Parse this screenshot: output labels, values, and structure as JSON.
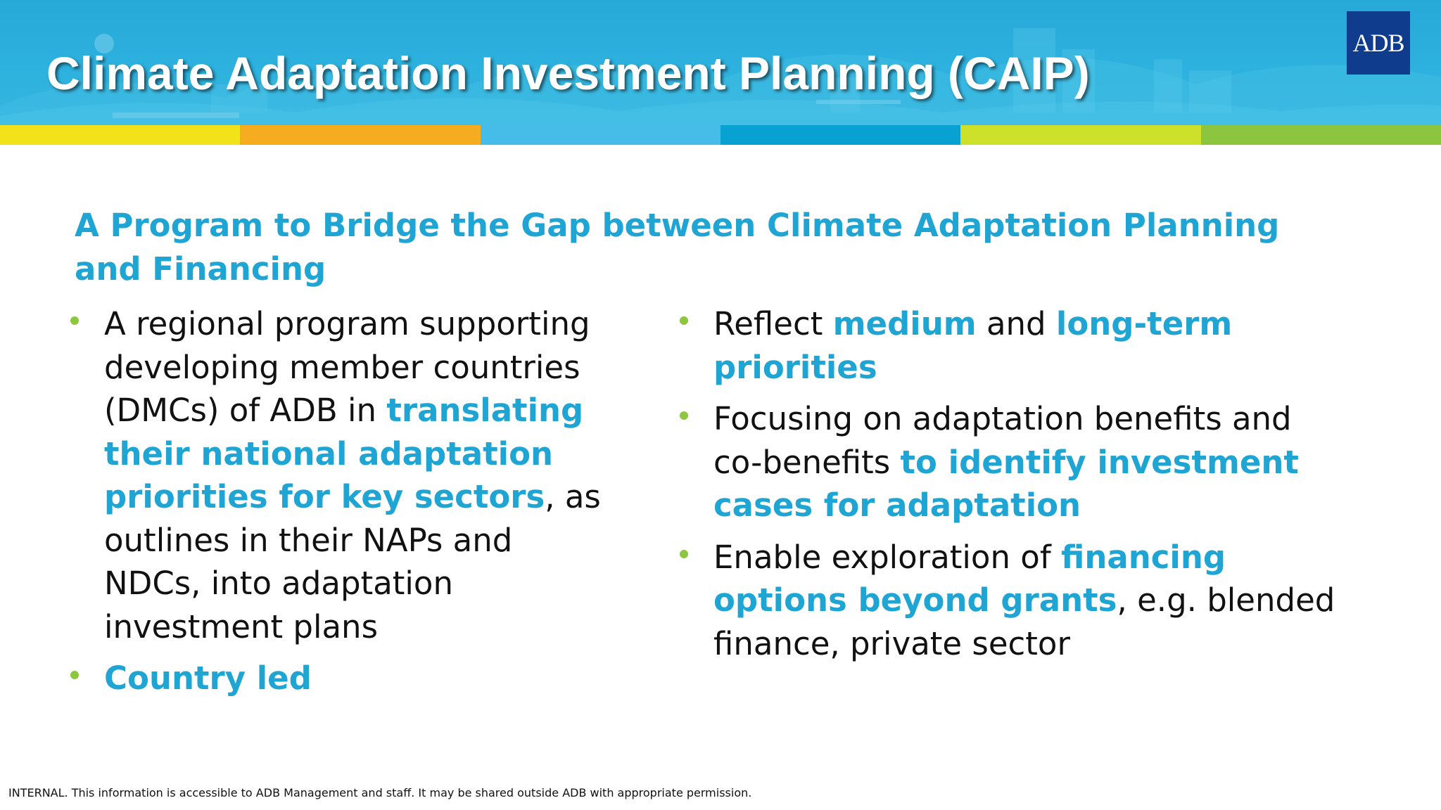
{
  "header": {
    "title": "Climate Adaptation Investment Planning (CAIP)",
    "logo_text": "ADB"
  },
  "colors": {
    "banner": "#2db1de",
    "accent_text": "#1fa5d3",
    "bullet": "#8dc63f",
    "stripe": [
      "#f1e21a",
      "#f6ac1f",
      "#45bde8",
      "#07a2d1",
      "#cde02a",
      "#8cc63f"
    ]
  },
  "subtitle": "A Program to Bridge the Gap between Climate Adaptation Planning and Financing",
  "left_column": {
    "items": [
      {
        "t1": "A regional program supporting developing member countries (DMCs) of ADB in ",
        "h1": "translating their national adaptation priorities for key sectors",
        "t2": ", as outlines in their NAPs and NDCs, into adaptation investment plans"
      },
      {
        "h1": "Country led"
      }
    ]
  },
  "right_column": {
    "items": [
      {
        "t1": "Reflect ",
        "h1": "medium",
        "t2": " and ",
        "h2": "long-term priorities"
      },
      {
        "t1": "Focusing on adaptation benefits and co-benefits ",
        "h1": "to identify investment cases for adaptation"
      },
      {
        "t1": "Enable exploration of ",
        "h1": "financing options beyond grants",
        "t2": ", e.g. blended finance, private sector"
      }
    ]
  },
  "footer": "INTERNAL. This information is accessible to ADB Management and staff. It may be shared outside ADB with appropriate permission."
}
